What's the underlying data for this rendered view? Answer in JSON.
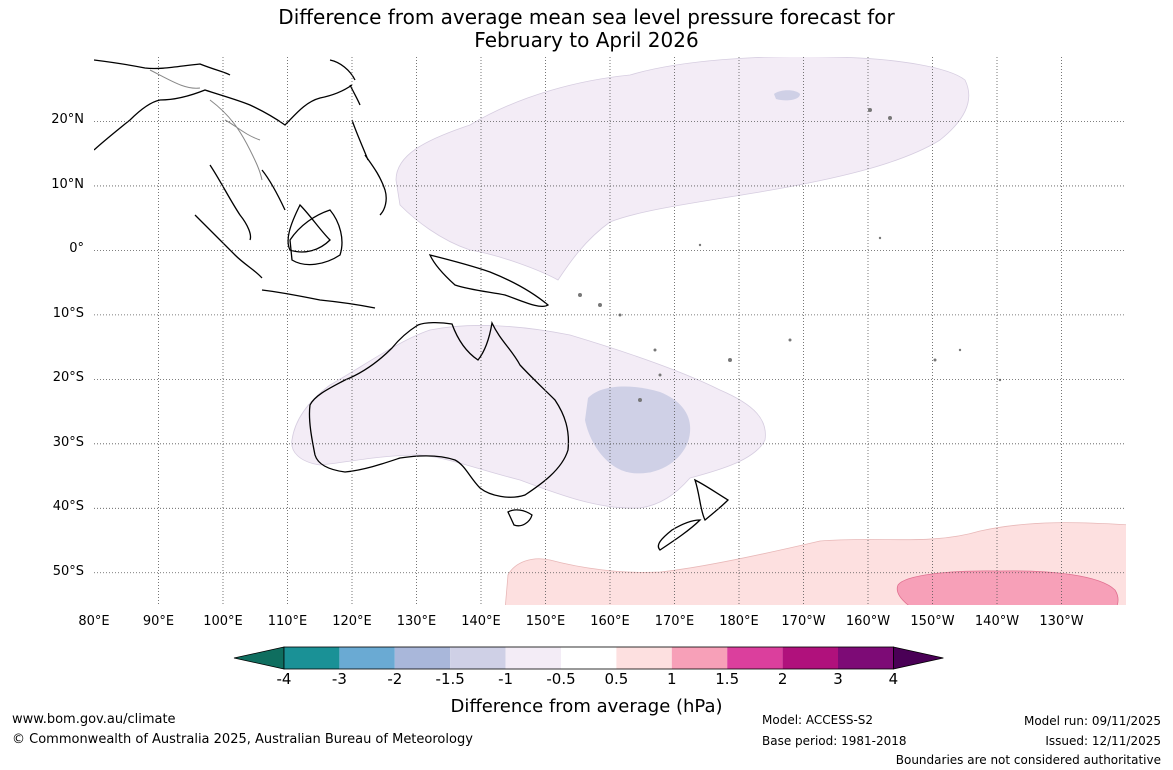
{
  "title_line1": "Difference from average mean sea level pressure forecast for",
  "title_line2": "February to April 2026",
  "map": {
    "extent": {
      "lon_min": 80,
      "lon_max": 240,
      "lat_min": -55,
      "lat_max": 30
    },
    "lat_labels": [
      {
        "lat": 20,
        "text": "20°N"
      },
      {
        "lat": 10,
        "text": "10°N"
      },
      {
        "lat": 0,
        "text": "0°"
      },
      {
        "lat": -10,
        "text": "10°S"
      },
      {
        "lat": -20,
        "text": "20°S"
      },
      {
        "lat": -30,
        "text": "30°S"
      },
      {
        "lat": -40,
        "text": "40°S"
      },
      {
        "lat": -50,
        "text": "50°S"
      }
    ],
    "lon_labels": [
      {
        "lon": 80,
        "text": "80°E"
      },
      {
        "lon": 90,
        "text": "90°E"
      },
      {
        "lon": 100,
        "text": "100°E"
      },
      {
        "lon": 110,
        "text": "110°E"
      },
      {
        "lon": 120,
        "text": "120°E"
      },
      {
        "lon": 130,
        "text": "130°E"
      },
      {
        "lon": 140,
        "text": "140°E"
      },
      {
        "lon": 150,
        "text": "150°E"
      },
      {
        "lon": 160,
        "text": "160°E"
      },
      {
        "lon": 170,
        "text": "170°E"
      },
      {
        "lon": 180,
        "text": "180°E"
      },
      {
        "lon": 190,
        "text": "170°W"
      },
      {
        "lon": 200,
        "text": "160°W"
      },
      {
        "lon": 210,
        "text": "150°W"
      },
      {
        "lon": 220,
        "text": "140°W"
      },
      {
        "lon": 230,
        "text": "130°W"
      }
    ]
  },
  "colorbar": {
    "colors": [
      "#0f6e5f",
      "#1a9196",
      "#6aaad3",
      "#a9b7da",
      "#cfd0e6",
      "#f3ecf6",
      "#ffffff",
      "#fde0e0",
      "#f7a0b8",
      "#db3f9d",
      "#b0117c",
      "#7d0b76",
      "#4a0056"
    ],
    "ticks": [
      "-4",
      "-3",
      "-2",
      "-1.5",
      "-1",
      "-0.5",
      "0.5",
      "1",
      "1.5",
      "2",
      "3",
      "4"
    ],
    "title": "Difference from average (hPa)"
  },
  "footer": {
    "website": "www.bom.gov.au/climate",
    "copyright": "© Commonwealth of Australia 2025, Australian Bureau of Meteorology",
    "model": "Model: ACCESS-S2",
    "base_period": "Base period: 1981-2018",
    "model_run": "Model run: 09/11/2025",
    "issued": "Issued: 12/11/2025",
    "disclaimer": "Boundaries are not considered authoritative"
  }
}
